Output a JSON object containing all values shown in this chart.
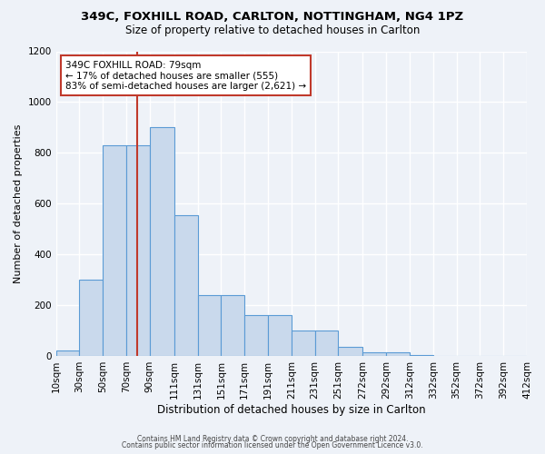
{
  "title": "349C, FOXHILL ROAD, CARLTON, NOTTINGHAM, NG4 1PZ",
  "subtitle": "Size of property relative to detached houses in Carlton",
  "bar_heights": [
    20,
    300,
    830,
    900,
    555,
    240,
    160,
    100,
    35,
    15,
    15,
    5
  ],
  "bin_edges": [
    10,
    30,
    50,
    70,
    90,
    111,
    131,
    151,
    171,
    191,
    211,
    231,
    251,
    272,
    292,
    312,
    332,
    352,
    372,
    392,
    412
  ],
  "xlabels": [
    "10sqm",
    "30sqm",
    "50sqm",
    "70sqm",
    "90sqm",
    "111sqm",
    "131sqm",
    "151sqm",
    "171sqm",
    "191sqm",
    "211sqm",
    "231sqm",
    "251sqm",
    "272sqm",
    "292sqm",
    "312sqm",
    "332sqm",
    "352sqm",
    "372sqm",
    "392sqm",
    "412sqm"
  ],
  "bar_color": "#c9d9ec",
  "bar_edge_color": "#5b9bd5",
  "ylabel": "Number of detached properties",
  "xlabel": "Distribution of detached houses by size in Carlton",
  "ylim": [
    0,
    1200
  ],
  "yticks": [
    0,
    200,
    400,
    600,
    800,
    1000,
    1200
  ],
  "vline_x": 79,
  "vline_color": "#c0392b",
  "annotation_text": "349C FOXHILL ROAD: 79sqm\n← 17% of detached houses are smaller (555)\n83% of semi-detached houses are larger (2,621) →",
  "annotation_box_color": "#ffffff",
  "annotation_box_edge_color": "#c0392b",
  "footer_line1": "Contains HM Land Registry data © Crown copyright and database right 2024.",
  "footer_line2": "Contains public sector information licensed under the Open Government Licence v3.0.",
  "background_color": "#eef2f8",
  "grid_color": "#ffffff",
  "all_bar_heights": [
    20,
    300,
    830,
    830,
    900,
    555,
    240,
    240,
    160,
    160,
    100,
    100,
    35,
    15,
    15,
    5,
    0,
    0,
    0,
    0
  ]
}
